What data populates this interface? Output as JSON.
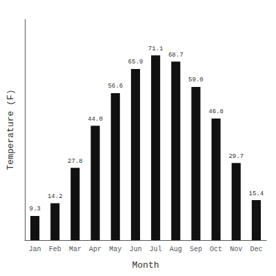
{
  "chart_data": {
    "type": "bar",
    "categories": [
      "Jan",
      "Feb",
      "Mar",
      "Apr",
      "May",
      "Jun",
      "Jul",
      "Aug",
      "Sep",
      "Oct",
      "Nov",
      "Dec"
    ],
    "values": [
      9.3,
      14.2,
      27.8,
      44.0,
      56.6,
      65.9,
      71.1,
      68.7,
      59.0,
      46.8,
      29.7,
      15.4
    ],
    "value_labels": [
      "9.3",
      "14.2",
      "27.8",
      "44.0",
      "56.6",
      "65.9",
      "71.1",
      "68.7",
      "59.0",
      "46.8",
      "29.7",
      "15.4"
    ],
    "color": "#111111",
    "xlabel": "Month",
    "ylabel": "Temperature (F)",
    "ylim": [
      0,
      85
    ],
    "yticks": [],
    "grid": false,
    "data_labels": true,
    "tick_labels": "x"
  }
}
